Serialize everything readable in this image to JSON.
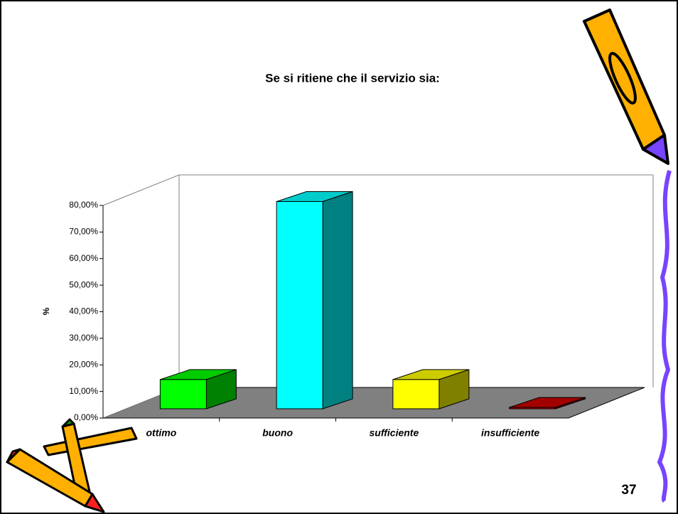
{
  "chart_data": {
    "type": "bar3d",
    "title": "Se si ritiene che il servizio sia:",
    "y_label": "%",
    "categories": [
      "ottimo",
      "buono",
      "sufficiente",
      "insufficiente"
    ],
    "values": [
      11,
      78,
      11,
      0.5
    ],
    "colors": [
      "#00ff00",
      "#00ffff",
      "#ffff00",
      "#cc0000"
    ],
    "ylim": [
      0,
      80
    ],
    "yticks": [
      {
        "value": 0,
        "label": "0,00%"
      },
      {
        "value": 10,
        "label": "10,00%"
      },
      {
        "value": 20,
        "label": "20,00%"
      },
      {
        "value": 30,
        "label": "30,00%"
      },
      {
        "value": 40,
        "label": "40,00%"
      },
      {
        "value": 50,
        "label": "50,00%"
      },
      {
        "value": 60,
        "label": "60,00%"
      },
      {
        "value": 70,
        "label": "70,00%"
      },
      {
        "value": 80,
        "label": "80,00%"
      }
    ],
    "floor_color": "#808080"
  },
  "page_number": "37"
}
